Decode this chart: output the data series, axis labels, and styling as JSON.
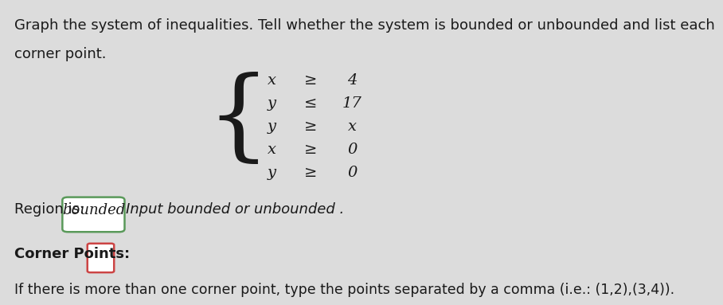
{
  "background_color": "#dcdcdc",
  "title_line1": "Graph the system of inequalities. Tell whether the system is bounded or unbounded and list each",
  "title_line2": "corner point.",
  "inequalities": [
    [
      "x",
      "≥",
      "4"
    ],
    [
      "y",
      "≤",
      "17"
    ],
    [
      "y",
      "≥",
      "x"
    ],
    [
      "x",
      "≥",
      "0"
    ],
    [
      "y",
      "≥",
      "0"
    ]
  ],
  "region_label": "Region is: ",
  "region_answer": "bounded",
  "region_input_label": "Input bounded or unbounded .",
  "corner_label": "Corner Points: ",
  "corner_note": "If there is more than one corner point, type the points separated by a comma (i.e.: (1,2),(3,4)).",
  "text_color": "#1a1a1a",
  "box_border_color": "#5a9a5a",
  "corner_box_border_color": "#cc4444",
  "main_font_size": 13,
  "system_font_size": 14,
  "brace_fontsize": 90
}
